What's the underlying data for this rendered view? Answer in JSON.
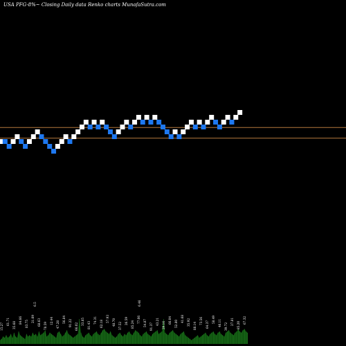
{
  "header": {
    "title": "USA PFG-8%~  Closing Daily data  Renko  charts MunafaSutra.com"
  },
  "colors": {
    "background": "#000000",
    "up_brick": "#ffffff",
    "down_brick": "#1e78f0",
    "level_line": "#b4783c",
    "volume_fill": "#0a4a0a",
    "volume_line": "#2a8a2a"
  },
  "chart_data": {
    "type": "renko",
    "title": "USA PFG-8%~  Closing Daily data  Renko  charts MunafaSutra.com",
    "bricks": [
      {
        "dir": "up",
        "level": 21
      },
      {
        "dir": "down",
        "level": 21
      },
      {
        "dir": "down",
        "level": 20
      },
      {
        "dir": "up",
        "level": 21
      },
      {
        "dir": "up",
        "level": 22
      },
      {
        "dir": "down",
        "level": 21
      },
      {
        "dir": "down",
        "level": 20
      },
      {
        "dir": "up",
        "level": 21
      },
      {
        "dir": "up",
        "level": 22
      },
      {
        "dir": "up",
        "level": 23
      },
      {
        "dir": "down",
        "level": 22
      },
      {
        "dir": "down",
        "level": 21
      },
      {
        "dir": "down",
        "level": 20
      },
      {
        "dir": "down",
        "level": 19
      },
      {
        "dir": "up",
        "level": 20
      },
      {
        "dir": "up",
        "level": 21
      },
      {
        "dir": "up",
        "level": 22
      },
      {
        "dir": "down",
        "level": 21
      },
      {
        "dir": "up",
        "level": 22
      },
      {
        "dir": "up",
        "level": 23
      },
      {
        "dir": "up",
        "level": 24
      },
      {
        "dir": "up",
        "level": 25
      },
      {
        "dir": "down",
        "level": 24
      },
      {
        "dir": "up",
        "level": 25
      },
      {
        "dir": "down",
        "level": 24
      },
      {
        "dir": "up",
        "level": 25
      },
      {
        "dir": "down",
        "level": 24
      },
      {
        "dir": "down",
        "level": 23
      },
      {
        "dir": "down",
        "level": 22
      },
      {
        "dir": "up",
        "level": 23
      },
      {
        "dir": "up",
        "level": 24
      },
      {
        "dir": "up",
        "level": 25
      },
      {
        "dir": "down",
        "level": 24
      },
      {
        "dir": "up",
        "level": 25
      },
      {
        "dir": "up",
        "level": 26
      },
      {
        "dir": "down",
        "level": 25
      },
      {
        "dir": "up",
        "level": 26
      },
      {
        "dir": "down",
        "level": 25
      },
      {
        "dir": "up",
        "level": 26
      },
      {
        "dir": "down",
        "level": 25
      },
      {
        "dir": "down",
        "level": 24
      },
      {
        "dir": "down",
        "level": 23
      },
      {
        "dir": "down",
        "level": 22
      },
      {
        "dir": "up",
        "level": 23
      },
      {
        "dir": "down",
        "level": 22
      },
      {
        "dir": "up",
        "level": 23
      },
      {
        "dir": "up",
        "level": 24
      },
      {
        "dir": "up",
        "level": 25
      },
      {
        "dir": "down",
        "level": 24
      },
      {
        "dir": "up",
        "level": 25
      },
      {
        "dir": "down",
        "level": 24
      },
      {
        "dir": "up",
        "level": 25
      },
      {
        "dir": "up",
        "level": 26
      },
      {
        "dir": "down",
        "level": 25
      },
      {
        "dir": "down",
        "level": 24
      },
      {
        "dir": "up",
        "level": 25
      },
      {
        "dir": "up",
        "level": 26
      },
      {
        "dir": "down",
        "level": 25
      },
      {
        "dir": "up",
        "level": 26
      },
      {
        "dir": "up",
        "level": 27
      }
    ],
    "reference_levels": [
      23.4,
      21.2
    ],
    "volume": [
      3,
      4,
      6,
      5,
      7,
      5,
      6,
      8,
      5,
      9,
      6,
      5,
      10,
      7,
      6,
      5,
      4,
      8,
      6,
      7,
      6,
      9,
      7,
      8,
      6,
      10,
      7,
      8,
      9,
      11,
      6,
      7,
      9,
      8,
      7,
      6,
      5,
      9,
      10,
      8,
      6,
      7,
      9,
      11,
      8,
      7,
      6,
      5,
      6,
      7,
      8,
      20,
      9,
      6,
      5,
      7,
      8,
      9,
      7,
      6,
      8,
      9,
      10,
      8,
      7,
      9,
      11,
      12,
      10,
      9,
      8,
      10,
      7,
      6,
      5,
      6,
      8,
      9,
      7,
      6,
      8,
      7,
      9,
      10,
      8,
      7,
      9,
      11,
      10,
      9,
      7,
      6,
      8,
      9,
      10,
      8,
      7,
      6,
      8,
      9,
      10,
      11,
      8,
      9,
      10,
      20,
      9,
      8,
      7,
      9,
      10,
      11,
      9,
      8,
      7,
      6,
      8,
      9,
      10,
      7,
      6,
      5,
      4,
      3,
      4,
      5,
      6,
      7,
      5,
      6,
      7,
      8,
      9,
      7,
      6,
      8,
      9,
      10,
      8,
      7,
      9,
      10,
      8,
      7,
      6,
      9,
      10,
      11,
      9,
      8,
      7,
      9,
      10,
      12,
      10,
      9,
      11,
      12,
      10,
      9
    ],
    "volume_labels": [
      "15.27",
      "61.71",
      "35.68",
      "84.66",
      "83.75",
      "21.09",
      "68.63",
      "78.59",
      "12.44",
      "47.28",
      "56.84",
      "91.22",
      "66.02",
      "33.85",
      "81.43",
      "74.31",
      "62.18",
      "57.93",
      "48.70",
      "37.52",
      "26.59",
      "85.24",
      "77.06",
      "54.87",
      "91.37",
      "43.21",
      "29.16",
      "66.04",
      "52.80",
      "41.68",
      "35.92",
      "88.14",
      "73.56",
      "64.37",
      "58.49",
      "46.11",
      "39.72",
      "27.81",
      "85.20",
      "67.32"
    ],
    "volume_peak_labels": [
      "6.5",
      "6.46"
    ]
  }
}
